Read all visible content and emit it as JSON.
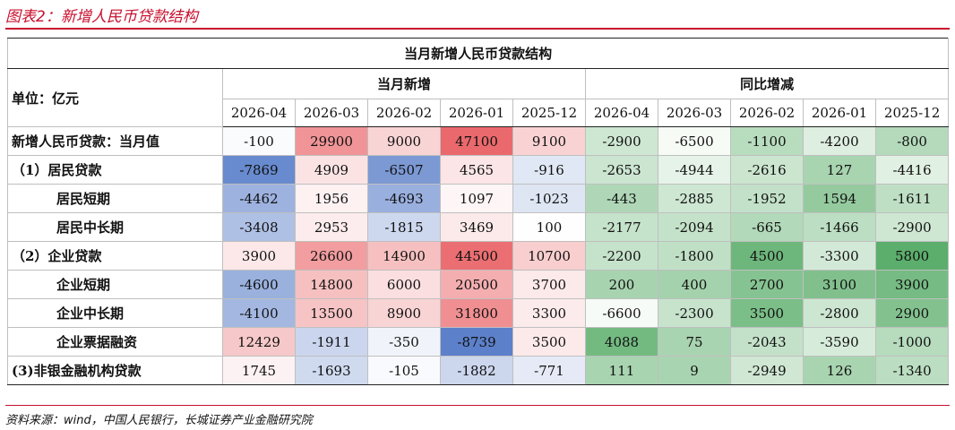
{
  "figure_title": "图表2：新增人民币贷款结构",
  "table_title": "当月新增人民币贷款结构",
  "unit_label": "单位：亿元",
  "group_headers": [
    "当月新增",
    "同比增减"
  ],
  "dates": [
    "2026-04",
    "2026-03",
    "2026-02",
    "2026-01",
    "2025-12"
  ],
  "rows": [
    {
      "label": "新增人民币贷款：当月值",
      "level": 0,
      "monthly": [
        "-100",
        "29900",
        "9000",
        "47100",
        "9100"
      ],
      "yoy": [
        "-2900",
        "-6500",
        "-1100",
        "-4200",
        "-800"
      ]
    },
    {
      "label": "（1）居民贷款",
      "level": 1,
      "monthly": [
        "-7869",
        "4909",
        "-6507",
        "4565",
        "-916"
      ],
      "yoy": [
        "-2653",
        "-4944",
        "-2616",
        "127",
        "-4416"
      ]
    },
    {
      "label": "居民短期",
      "level": 2,
      "monthly": [
        "-4462",
        "1956",
        "-4693",
        "1097",
        "-1023"
      ],
      "yoy": [
        "-443",
        "-2885",
        "-1952",
        "1594",
        "-1611"
      ]
    },
    {
      "label": "居民中长期",
      "level": 2,
      "monthly": [
        "-3408",
        "2953",
        "-1815",
        "3469",
        "100"
      ],
      "yoy": [
        "-2177",
        "-2094",
        "-665",
        "-1466",
        "-2900"
      ]
    },
    {
      "label": "（2）企业贷款",
      "level": 1,
      "monthly": [
        "3900",
        "26600",
        "14900",
        "44500",
        "10700"
      ],
      "yoy": [
        "-2200",
        "-1800",
        "4500",
        "-3300",
        "5800"
      ]
    },
    {
      "label": "企业短期",
      "level": 2,
      "monthly": [
        "-4600",
        "14800",
        "6000",
        "20500",
        "3700"
      ],
      "yoy": [
        "200",
        "400",
        "2700",
        "3100",
        "3900"
      ]
    },
    {
      "label": "企业中长期",
      "level": 2,
      "monthly": [
        "-4100",
        "13500",
        "8900",
        "31800",
        "3300"
      ],
      "yoy": [
        "-6600",
        "-2300",
        "3500",
        "-2800",
        "2900"
      ]
    },
    {
      "label": "企业票据融资",
      "level": 2,
      "monthly": [
        "12429",
        "-1911",
        "-350",
        "-8739",
        "3500"
      ],
      "yoy": [
        "4088",
        "75",
        "-2043",
        "-3590",
        "-1000"
      ]
    },
    {
      "label": "(3)非银金融机构贷款",
      "level": 1,
      "monthly": [
        "1745",
        "-1693",
        "-105",
        "-1882",
        "-771"
      ],
      "yoy": [
        "111",
        "9",
        "-2949",
        "126",
        "-1340"
      ]
    }
  ],
  "source": "资料来源：wind，中国人民银行，长城证券产业金融研究院",
  "colors": {
    "accent": "#c8102e",
    "heat_negative": "#4a72c4",
    "heat_positive": "#e8585c",
    "heat_green_low": "#f7fbf7",
    "heat_green_high": "#5cae6c"
  }
}
